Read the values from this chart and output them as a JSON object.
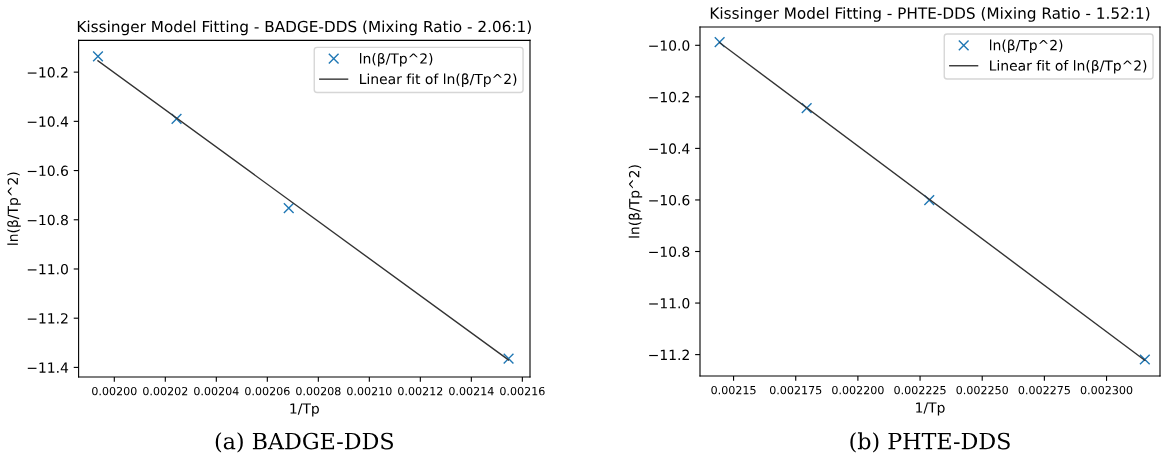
{
  "chart_data": [
    {
      "type": "scatter",
      "title": "Kissinger Model Fitting - BADGE-DDS (Mixing Ratio - 2.06:1)",
      "xlabel": "1/Tp",
      "ylabel": "ln(β/Tp^2)",
      "annotations": [
        "(a) BADGE-DDS"
      ],
      "legend": "top right",
      "grid": false,
      "xlim": [
        0.001986,
        0.002163
      ],
      "ylim": [
        -11.439,
        -10.071
      ],
      "xticks": [
        {
          "value": 0.002,
          "label": "0.00200"
        },
        {
          "value": 0.00202,
          "label": "0.00202"
        },
        {
          "value": 0.00204,
          "label": "0.00204"
        },
        {
          "value": 0.00206,
          "label": "0.00206"
        },
        {
          "value": 0.00208,
          "label": "0.00208"
        },
        {
          "value": 0.0021,
          "label": "0.00210"
        },
        {
          "value": 0.00212,
          "label": "0.00212"
        },
        {
          "value": 0.00214,
          "label": "0.00214"
        },
        {
          "value": 0.00216,
          "label": "0.00216"
        }
      ],
      "yticks": [
        {
          "value": -10.2,
          "label": "−10.2"
        },
        {
          "value": -10.4,
          "label": "−10.4"
        },
        {
          "value": -10.6,
          "label": "−10.6"
        },
        {
          "value": -10.8,
          "label": "−10.8"
        },
        {
          "value": -11.0,
          "label": "−11.0"
        },
        {
          "value": -11.2,
          "label": "−11.2"
        },
        {
          "value": -11.4,
          "label": "−11.4"
        }
      ],
      "series": [
        {
          "name": "ln(β/Tp^2)",
          "color": "#1f77b4",
          "marker": "cross",
          "x": [
            0.0019936,
            0.0020244,
            0.0020684,
            0.0021546
          ],
          "values": [
            -10.136,
            -10.39,
            -10.753,
            -11.364
          ]
        },
        {
          "type": "line",
          "name": "Linear fit of ln(β/Tp^2)",
          "color": "#333333",
          "line_style": "solid",
          "x": [
            0.0019936,
            0.0021546
          ],
          "values": [
            -10.154,
            -11.37
          ]
        }
      ]
    },
    {
      "type": "scatter",
      "title": "Kissinger Model Fitting - PHTE-DDS (Mixing Ratio - 1.52:1)",
      "xlabel": "1/Tp",
      "ylabel": "ln(β/Tp^2)",
      "annotations": [
        "(b) PHTE-DDS"
      ],
      "legend": "top right",
      "grid": false,
      "xlim": [
        0.0021365,
        0.0023215
      ],
      "ylim": [
        -11.283,
        -9.929
      ],
      "xticks": [
        {
          "value": 0.00215,
          "label": "0.00215"
        },
        {
          "value": 0.002175,
          "label": "0.002175"
        },
        {
          "value": 0.0022,
          "label": "0.002200"
        },
        {
          "value": 0.002225,
          "label": "0.002225"
        },
        {
          "value": 0.00225,
          "label": "0.002250"
        },
        {
          "value": 0.002275,
          "label": "0.002275"
        },
        {
          "value": 0.0023,
          "label": "0.002300"
        }
      ],
      "yticks": [
        {
          "value": -10.0,
          "label": "−10.0"
        },
        {
          "value": -10.2,
          "label": "−10.2"
        },
        {
          "value": -10.4,
          "label": "−10.4"
        },
        {
          "value": -10.6,
          "label": "−10.6"
        },
        {
          "value": -10.8,
          "label": "−10.8"
        },
        {
          "value": -11.0,
          "label": "−11.0"
        },
        {
          "value": -11.2,
          "label": "−11.2"
        }
      ],
      "series": [
        {
          "name": "ln(β/Tp^2)",
          "color": "#1f77b4",
          "marker": "cross",
          "x": [
            0.0021444,
            0.0021794,
            0.0022287,
            0.0023154
          ],
          "values": [
            -9.988,
            -10.244,
            -10.601,
            -11.219
          ]
        },
        {
          "type": "line",
          "name": "Linear fit of ln(β/Tp^2)",
          "color": "#333333",
          "line_style": "solid",
          "x": [
            0.0021444,
            0.0023154
          ],
          "values": [
            -9.99,
            -11.222
          ]
        }
      ]
    }
  ]
}
